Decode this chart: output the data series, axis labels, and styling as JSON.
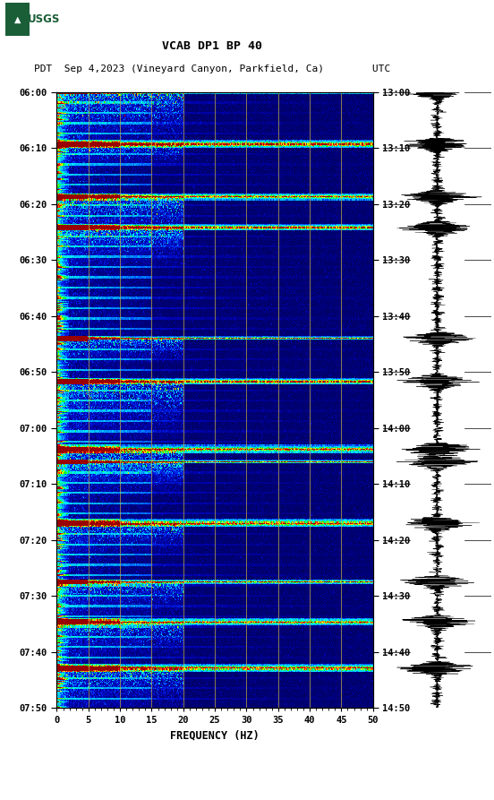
{
  "title_line1": "VCAB DP1 BP 40",
  "title_line2": "PDT  Sep 4,2023 (Vineyard Canyon, Parkfield, Ca)        UTC",
  "xlabel": "FREQUENCY (HZ)",
  "freq_min": 0,
  "freq_max": 50,
  "time_labels_left": [
    "06:00",
    "06:10",
    "06:20",
    "06:30",
    "06:40",
    "06:50",
    "07:00",
    "07:10",
    "07:20",
    "07:30",
    "07:40",
    "07:50"
  ],
  "time_labels_right": [
    "13:00",
    "13:10",
    "13:20",
    "13:30",
    "13:40",
    "13:50",
    "14:00",
    "14:10",
    "14:20",
    "14:30",
    "14:40",
    "14:50"
  ],
  "num_time_rows": 600,
  "num_freq_cols": 500,
  "vertical_lines_freq": [
    5,
    10,
    15,
    20,
    25,
    30,
    35,
    40,
    45
  ],
  "usgs_green": "#1a5e38",
  "fig_width": 5.52,
  "fig_height": 8.93
}
